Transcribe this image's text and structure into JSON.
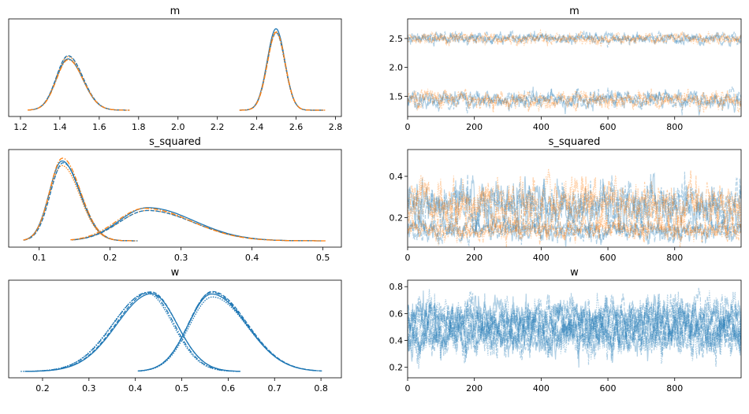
{
  "colors": {
    "c0": "#1f77b4",
    "c1": "#ff7f0e"
  },
  "chart_data": [
    {
      "type": "line",
      "kind": "kde",
      "title": "m",
      "xlim": [
        1.14,
        2.83
      ],
      "xticks": [
        "1.2",
        "1.4",
        "1.6",
        "1.8",
        "2.0",
        "2.2",
        "2.4",
        "2.6",
        "2.8"
      ],
      "series": [
        {
          "mode": 1.44,
          "sdL": 0.06,
          "sdR": 0.075,
          "range": [
            1.24,
            1.76
          ],
          "colors": [
            "c0",
            "c1"
          ]
        },
        {
          "mode": 2.5,
          "sdL": 0.045,
          "sdR": 0.045,
          "range": [
            2.31,
            2.75
          ],
          "colors": [
            "c0",
            "c1"
          ]
        }
      ]
    },
    {
      "type": "line",
      "kind": "trace",
      "title": "m",
      "xlim": [
        0,
        999
      ],
      "ylim": [
        1.15,
        2.84
      ],
      "xticks": [
        "0",
        "200",
        "400",
        "600",
        "800"
      ],
      "yticks": [
        "1.5",
        "2.0",
        "2.5"
      ],
      "series": [
        {
          "mode": 1.44,
          "sd": 0.07,
          "colors": [
            "c0",
            "c1"
          ]
        },
        {
          "mode": 2.5,
          "sd": 0.045,
          "colors": [
            "c0",
            "c1"
          ]
        }
      ]
    },
    {
      "type": "line",
      "kind": "kde",
      "title": "s_squared",
      "xlim": [
        0.057,
        0.526
      ],
      "xticks": [
        "0.1",
        "0.2",
        "0.3",
        "0.4",
        "0.5"
      ],
      "series": [
        {
          "mode": 0.133,
          "sdL": 0.018,
          "sdR": 0.025,
          "range": [
            0.078,
            0.24
          ],
          "colors": [
            "c0",
            "c1"
          ]
        },
        {
          "mode": 0.25,
          "sdL": 0.04,
          "sdR": 0.065,
          "range": [
            0.148,
            0.505
          ],
          "colors": [
            "c0",
            "c1"
          ]
        }
      ]
    },
    {
      "type": "line",
      "kind": "trace",
      "title": "s_squared",
      "xlim": [
        0,
        999
      ],
      "ylim": [
        0.056,
        0.53
      ],
      "xticks": [
        "0",
        "200",
        "400",
        "600",
        "800"
      ],
      "yticks": [
        "0.2",
        "0.4"
      ],
      "series": [
        {
          "mode": 0.14,
          "sd": 0.025,
          "colors": [
            "c0",
            "c1"
          ]
        },
        {
          "mode": 0.26,
          "sd": 0.055,
          "colors": [
            "c0",
            "c1"
          ]
        }
      ]
    },
    {
      "type": "line",
      "kind": "kde",
      "title": "w",
      "xlim": [
        0.127,
        0.844
      ],
      "xticks": [
        "0.2",
        "0.3",
        "0.4",
        "0.5",
        "0.6",
        "0.7",
        "0.8"
      ],
      "series": [
        {
          "mode": 0.43,
          "sdL": 0.075,
          "sdR": 0.055,
          "range": [
            0.16,
            0.63
          ],
          "colors": [
            "c0",
            "c0"
          ]
        },
        {
          "mode": 0.565,
          "sdL": 0.05,
          "sdR": 0.075,
          "range": [
            0.41,
            0.81
          ],
          "colors": [
            "c0",
            "c0"
          ]
        }
      ]
    },
    {
      "type": "line",
      "kind": "trace",
      "title": "w",
      "xlim": [
        0,
        999
      ],
      "ylim": [
        0.122,
        0.848
      ],
      "xticks": [
        "0",
        "200",
        "400",
        "600",
        "800"
      ],
      "yticks": [
        "0.2",
        "0.4",
        "0.6",
        "0.8"
      ],
      "series": [
        {
          "mode": 0.43,
          "sd": 0.07,
          "colors": [
            "c0",
            "c0"
          ]
        },
        {
          "mode": 0.565,
          "sd": 0.07,
          "colors": [
            "c0",
            "c0"
          ]
        }
      ]
    }
  ]
}
